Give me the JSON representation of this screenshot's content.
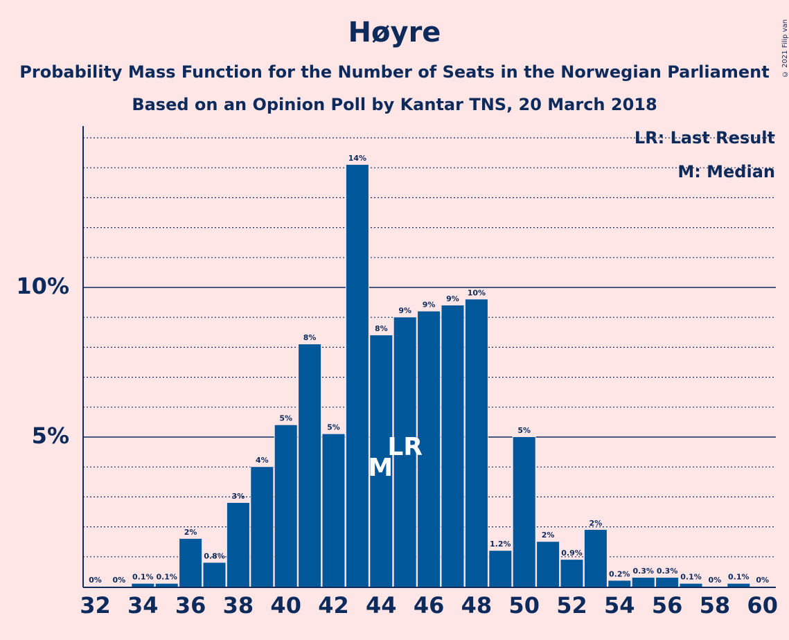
{
  "chart_data": {
    "type": "bar",
    "title": "Høyre",
    "subtitle_lines": [
      "Probability Mass Function for the Number of Seats in the Norwegian Parliament",
      "Based on an Opinion Poll by Kantar TNS, 20 March 2018"
    ],
    "categories": [
      32,
      33,
      34,
      35,
      36,
      37,
      38,
      39,
      40,
      41,
      42,
      43,
      44,
      45,
      46,
      47,
      48,
      49,
      50,
      51,
      52,
      53,
      54,
      55,
      56,
      57,
      58,
      59,
      60
    ],
    "values": [
      0,
      0,
      0.1,
      0.1,
      1.6,
      0.8,
      2.8,
      4.0,
      5.4,
      8.1,
      5.1,
      14.1,
      8.4,
      9.0,
      9.2,
      9.4,
      9.6,
      1.2,
      5.0,
      1.5,
      0.9,
      1.9,
      0.2,
      0.3,
      0.3,
      0.1,
      0,
      0.1,
      0
    ],
    "value_labels": [
      "0%",
      "0%",
      "0.1%",
      "0.1%",
      "2%",
      "0.8%",
      "3%",
      "4%",
      "5%",
      "8%",
      "5%",
      "14%",
      "8%",
      "9%",
      "9%",
      "9%",
      "10%",
      "1.2%",
      "5%",
      "2%",
      "0.9%",
      "2%",
      "0.2%",
      "0.3%",
      "0.3%",
      "0.1%",
      "0%",
      "0.1%",
      "0%"
    ],
    "x_tick_labels": [
      "32",
      "34",
      "36",
      "38",
      "40",
      "42",
      "44",
      "46",
      "48",
      "50",
      "52",
      "54",
      "56",
      "58",
      "60"
    ],
    "y_ticks": [
      {
        "value": 5,
        "label": "5%"
      },
      {
        "value": 10,
        "label": "10%"
      }
    ],
    "ylim": [
      0,
      15
    ],
    "minor_grid_step": 1,
    "grid": true,
    "markers": [
      {
        "category": 44,
        "text": "M"
      },
      {
        "category": 45,
        "text": "LR"
      }
    ],
    "legend": {
      "placement": "top-right",
      "entries": [
        "LR: Last Result",
        "M: Median"
      ]
    },
    "copyright": "© 2021 Filip van Laenen"
  },
  "colors": {
    "background": "#FFE6E6",
    "bar": "#00579A",
    "text": "#0C2A5B"
  }
}
